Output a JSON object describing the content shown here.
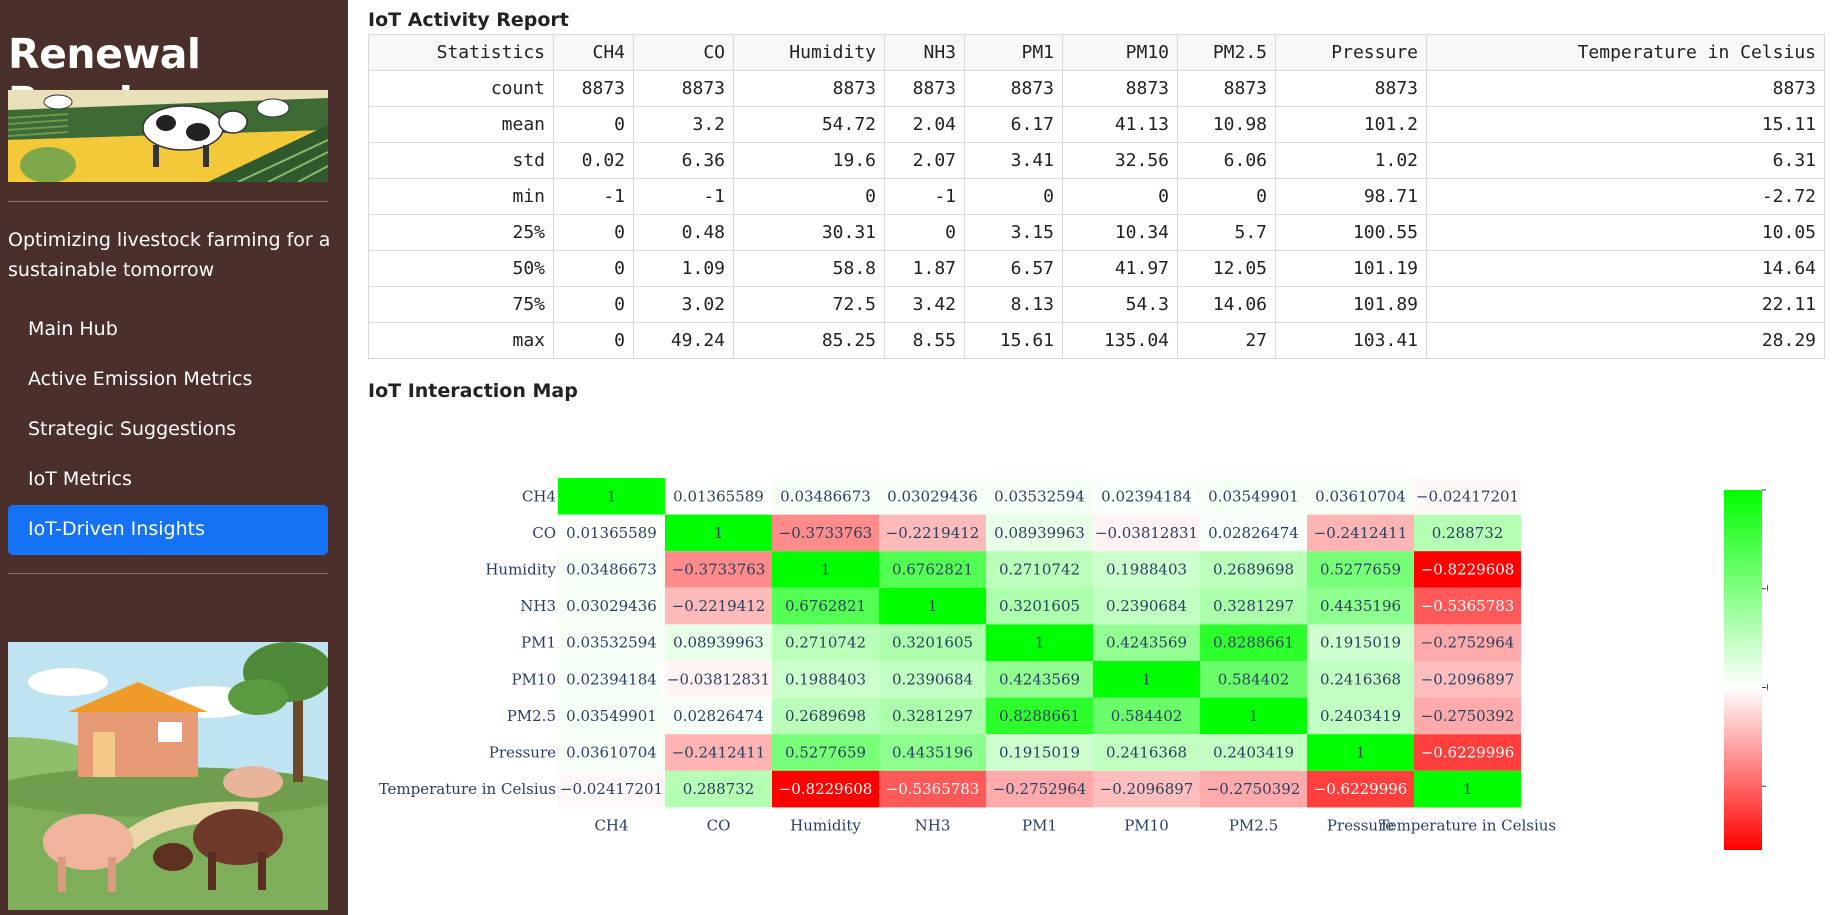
{
  "sidebar": {
    "brand": "Renewal Ranch",
    "tagline": "Optimizing livestock farming for a sustainable tomorrow",
    "nav": [
      {
        "label": "Main Hub",
        "active": false
      },
      {
        "label": "Active Emission Metrics",
        "active": false
      },
      {
        "label": "Strategic Suggestions",
        "active": false
      },
      {
        "label": "IoT Metrics",
        "active": false
      },
      {
        "label": "IoT-Driven Insights",
        "active": true
      }
    ]
  },
  "report": {
    "title": "IoT Activity Report",
    "columns": [
      "Statistics",
      "CH4",
      "CO",
      "Humidity",
      "NH3",
      "PM1",
      "PM10",
      "PM2.5",
      "Pressure",
      "Temperature in Celsius"
    ],
    "rows": [
      [
        "count",
        "8873",
        "8873",
        "8873",
        "8873",
        "8873",
        "8873",
        "8873",
        "8873",
        "8873"
      ],
      [
        "mean",
        "0",
        "3.2",
        "54.72",
        "2.04",
        "6.17",
        "41.13",
        "10.98",
        "101.2",
        "15.11"
      ],
      [
        "std",
        "0.02",
        "6.36",
        "19.6",
        "2.07",
        "3.41",
        "32.56",
        "6.06",
        "1.02",
        "6.31"
      ],
      [
        "min",
        "-1",
        "-1",
        "0",
        "-1",
        "0",
        "0",
        "0",
        "98.71",
        "-2.72"
      ],
      [
        "25%",
        "0",
        "0.48",
        "30.31",
        "0",
        "3.15",
        "10.34",
        "5.7",
        "100.55",
        "10.05"
      ],
      [
        "50%",
        "0",
        "1.09",
        "58.8",
        "1.87",
        "6.57",
        "41.97",
        "12.05",
        "101.19",
        "14.64"
      ],
      [
        "75%",
        "0",
        "3.02",
        "72.5",
        "3.42",
        "8.13",
        "54.3",
        "14.06",
        "101.89",
        "22.11"
      ],
      [
        "max",
        "0",
        "49.24",
        "85.25",
        "8.55",
        "15.61",
        "135.04",
        "27",
        "103.41",
        "28.29"
      ]
    ]
  },
  "map_title": "IoT Interaction Map",
  "chart_data": {
    "type": "heatmap",
    "x": [
      "CH4",
      "CO",
      "Humidity",
      "NH3",
      "PM1",
      "PM10",
      "PM2.5",
      "Pressure",
      "Temperature in Celsius"
    ],
    "y": [
      "CH4",
      "CO",
      "Humidity",
      "NH3",
      "PM1",
      "PM10",
      "PM2.5",
      "Pressure",
      "Temperature in Celsius"
    ],
    "z": [
      [
        1,
        0.01365589,
        0.03486673,
        0.03029436,
        0.03532594,
        0.02394184,
        0.03549901,
        0.03610704,
        -0.02417201
      ],
      [
        0.01365589,
        1,
        -0.3733763,
        -0.2219412,
        0.08939963,
        -0.03812831,
        0.02826474,
        -0.2412411,
        0.288732
      ],
      [
        0.03486673,
        -0.3733763,
        1,
        0.6762821,
        0.2710742,
        0.1988403,
        0.2689698,
        0.5277659,
        -0.8229608
      ],
      [
        0.03029436,
        -0.2219412,
        0.6762821,
        1,
        0.3201605,
        0.2390684,
        0.3281297,
        0.4435196,
        -0.5365783
      ],
      [
        0.03532594,
        0.08939963,
        0.2710742,
        0.3201605,
        1,
        0.4243569,
        0.8288661,
        0.1915019,
        -0.2752964
      ],
      [
        0.02394184,
        -0.03812831,
        0.1988403,
        0.2390684,
        0.4243569,
        1,
        0.584402,
        0.2416368,
        -0.2096897
      ],
      [
        0.03549901,
        0.02826474,
        0.2689698,
        0.3281297,
        0.8288661,
        0.584402,
        1,
        0.2403419,
        -0.2750392
      ],
      [
        0.03610704,
        -0.2412411,
        0.5277659,
        0.4435196,
        0.1915019,
        0.2416368,
        0.2403419,
        1,
        -0.6229996
      ],
      [
        -0.02417201,
        0.288732,
        -0.8229608,
        -0.5365783,
        -0.2752964,
        -0.2096897,
        -0.2750392,
        -0.6229996,
        1
      ]
    ],
    "zmin": -0.8229608,
    "zmax": 1,
    "colorbar_ticks": [
      1,
      0.5,
      0,
      -0.5
    ],
    "colorscale": [
      "#ff0000",
      "#ffffff",
      "#00ff00"
    ]
  }
}
